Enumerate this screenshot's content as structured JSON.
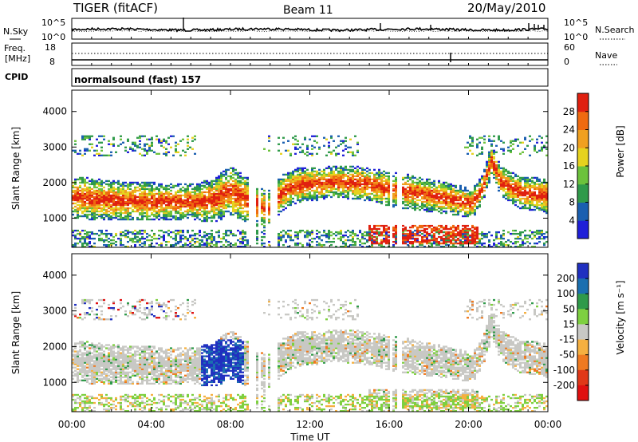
{
  "header": {
    "station": "TIGER (fitACF)",
    "beam": "Beam 11",
    "date": "20/May/2010"
  },
  "noise_panel": {
    "left_label": "N.Sky",
    "right_label": "N.Search",
    "left_ticks": [
      "10^5",
      "10^0"
    ],
    "right_ticks": [
      "10^5",
      "10^0"
    ]
  },
  "freq_panel": {
    "left_label_1": "Freq.",
    "left_label_2": "[MHz]",
    "right_label": "Nave",
    "left_ticks": [
      "18",
      "8"
    ],
    "right_ticks": [
      "60",
      "0"
    ]
  },
  "cpid": {
    "label": "CPID",
    "value": "normalsound (fast) 157"
  },
  "chart_data": [
    {
      "type": "heatmap",
      "name": "Power",
      "ylabel": "Slant Range [km]",
      "y_ticks": [
        "1000",
        "2000",
        "3000",
        "4000"
      ],
      "ylim": [
        180,
        4600
      ],
      "colorbar": {
        "label": "Power [dB]",
        "ticks": [
          "4",
          "8",
          "12",
          "16",
          "20",
          "24",
          "28"
        ],
        "colors": [
          "#1f1fd8",
          "#1a5fb0",
          "#2f9a4a",
          "#6cc23c",
          "#e6d21e",
          "#f0a020",
          "#ef6a10",
          "#e02010"
        ]
      }
    },
    {
      "type": "heatmap",
      "name": "Velocity",
      "ylabel": "Slant Range [km]",
      "y_ticks": [
        "1000",
        "2000",
        "3000",
        "4000"
      ],
      "ylim": [
        180,
        4600
      ],
      "colorbar": {
        "label": "Velocity [m s⁻¹]",
        "ticks": [
          "200",
          "100",
          "50",
          "15",
          "-15",
          "-50",
          "-100",
          "-200"
        ],
        "colors": [
          "#2030c0",
          "#1a6fb0",
          "#2f9a4a",
          "#7ed040",
          "#c8c8c4",
          "#f5b040",
          "#ef7a20",
          "#e03818",
          "#e01010"
        ]
      }
    }
  ],
  "time_axis": {
    "ticks": [
      "00:00",
      "04:00",
      "08:00",
      "12:00",
      "16:00",
      "20:00",
      "00:00"
    ],
    "label": "Time UT"
  }
}
